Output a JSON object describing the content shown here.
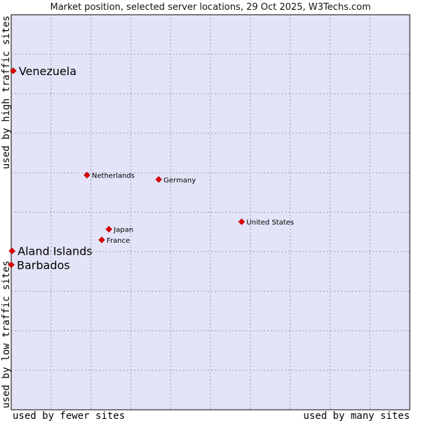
{
  "chart_data": {
    "type": "scatter",
    "title": "Market position, selected server locations, 29 Oct 2025, W3Techs.com",
    "xlabel_left": "used by fewer sites",
    "xlabel_right": "used by many sites",
    "ylabel_bottom": "used by low traffic sites",
    "ylabel_top": "used by high traffic sites",
    "xlim": [
      0,
      100
    ],
    "ylim": [
      0,
      100
    ],
    "grid": true,
    "background_color": "#e4e4f8",
    "grid_color": "#9a9ab0",
    "point_color": "#dd0000",
    "points": [
      {
        "name": "Venezuela",
        "x": 0.5,
        "y": 85.8,
        "emphasis": true
      },
      {
        "name": "Netherlands",
        "x": 19.0,
        "y": 59.4,
        "emphasis": false
      },
      {
        "name": "Germany",
        "x": 37.0,
        "y": 58.3,
        "emphasis": false
      },
      {
        "name": "United States",
        "x": 57.8,
        "y": 47.6,
        "emphasis": false
      },
      {
        "name": "Japan",
        "x": 24.5,
        "y": 45.7,
        "emphasis": false
      },
      {
        "name": "France",
        "x": 22.7,
        "y": 43.0,
        "emphasis": false
      },
      {
        "name": "Aland Islands",
        "x": 0.2,
        "y": 40.2,
        "emphasis": true
      },
      {
        "name": "Barbados",
        "x": 0.0,
        "y": 36.7,
        "emphasis": true
      }
    ]
  }
}
